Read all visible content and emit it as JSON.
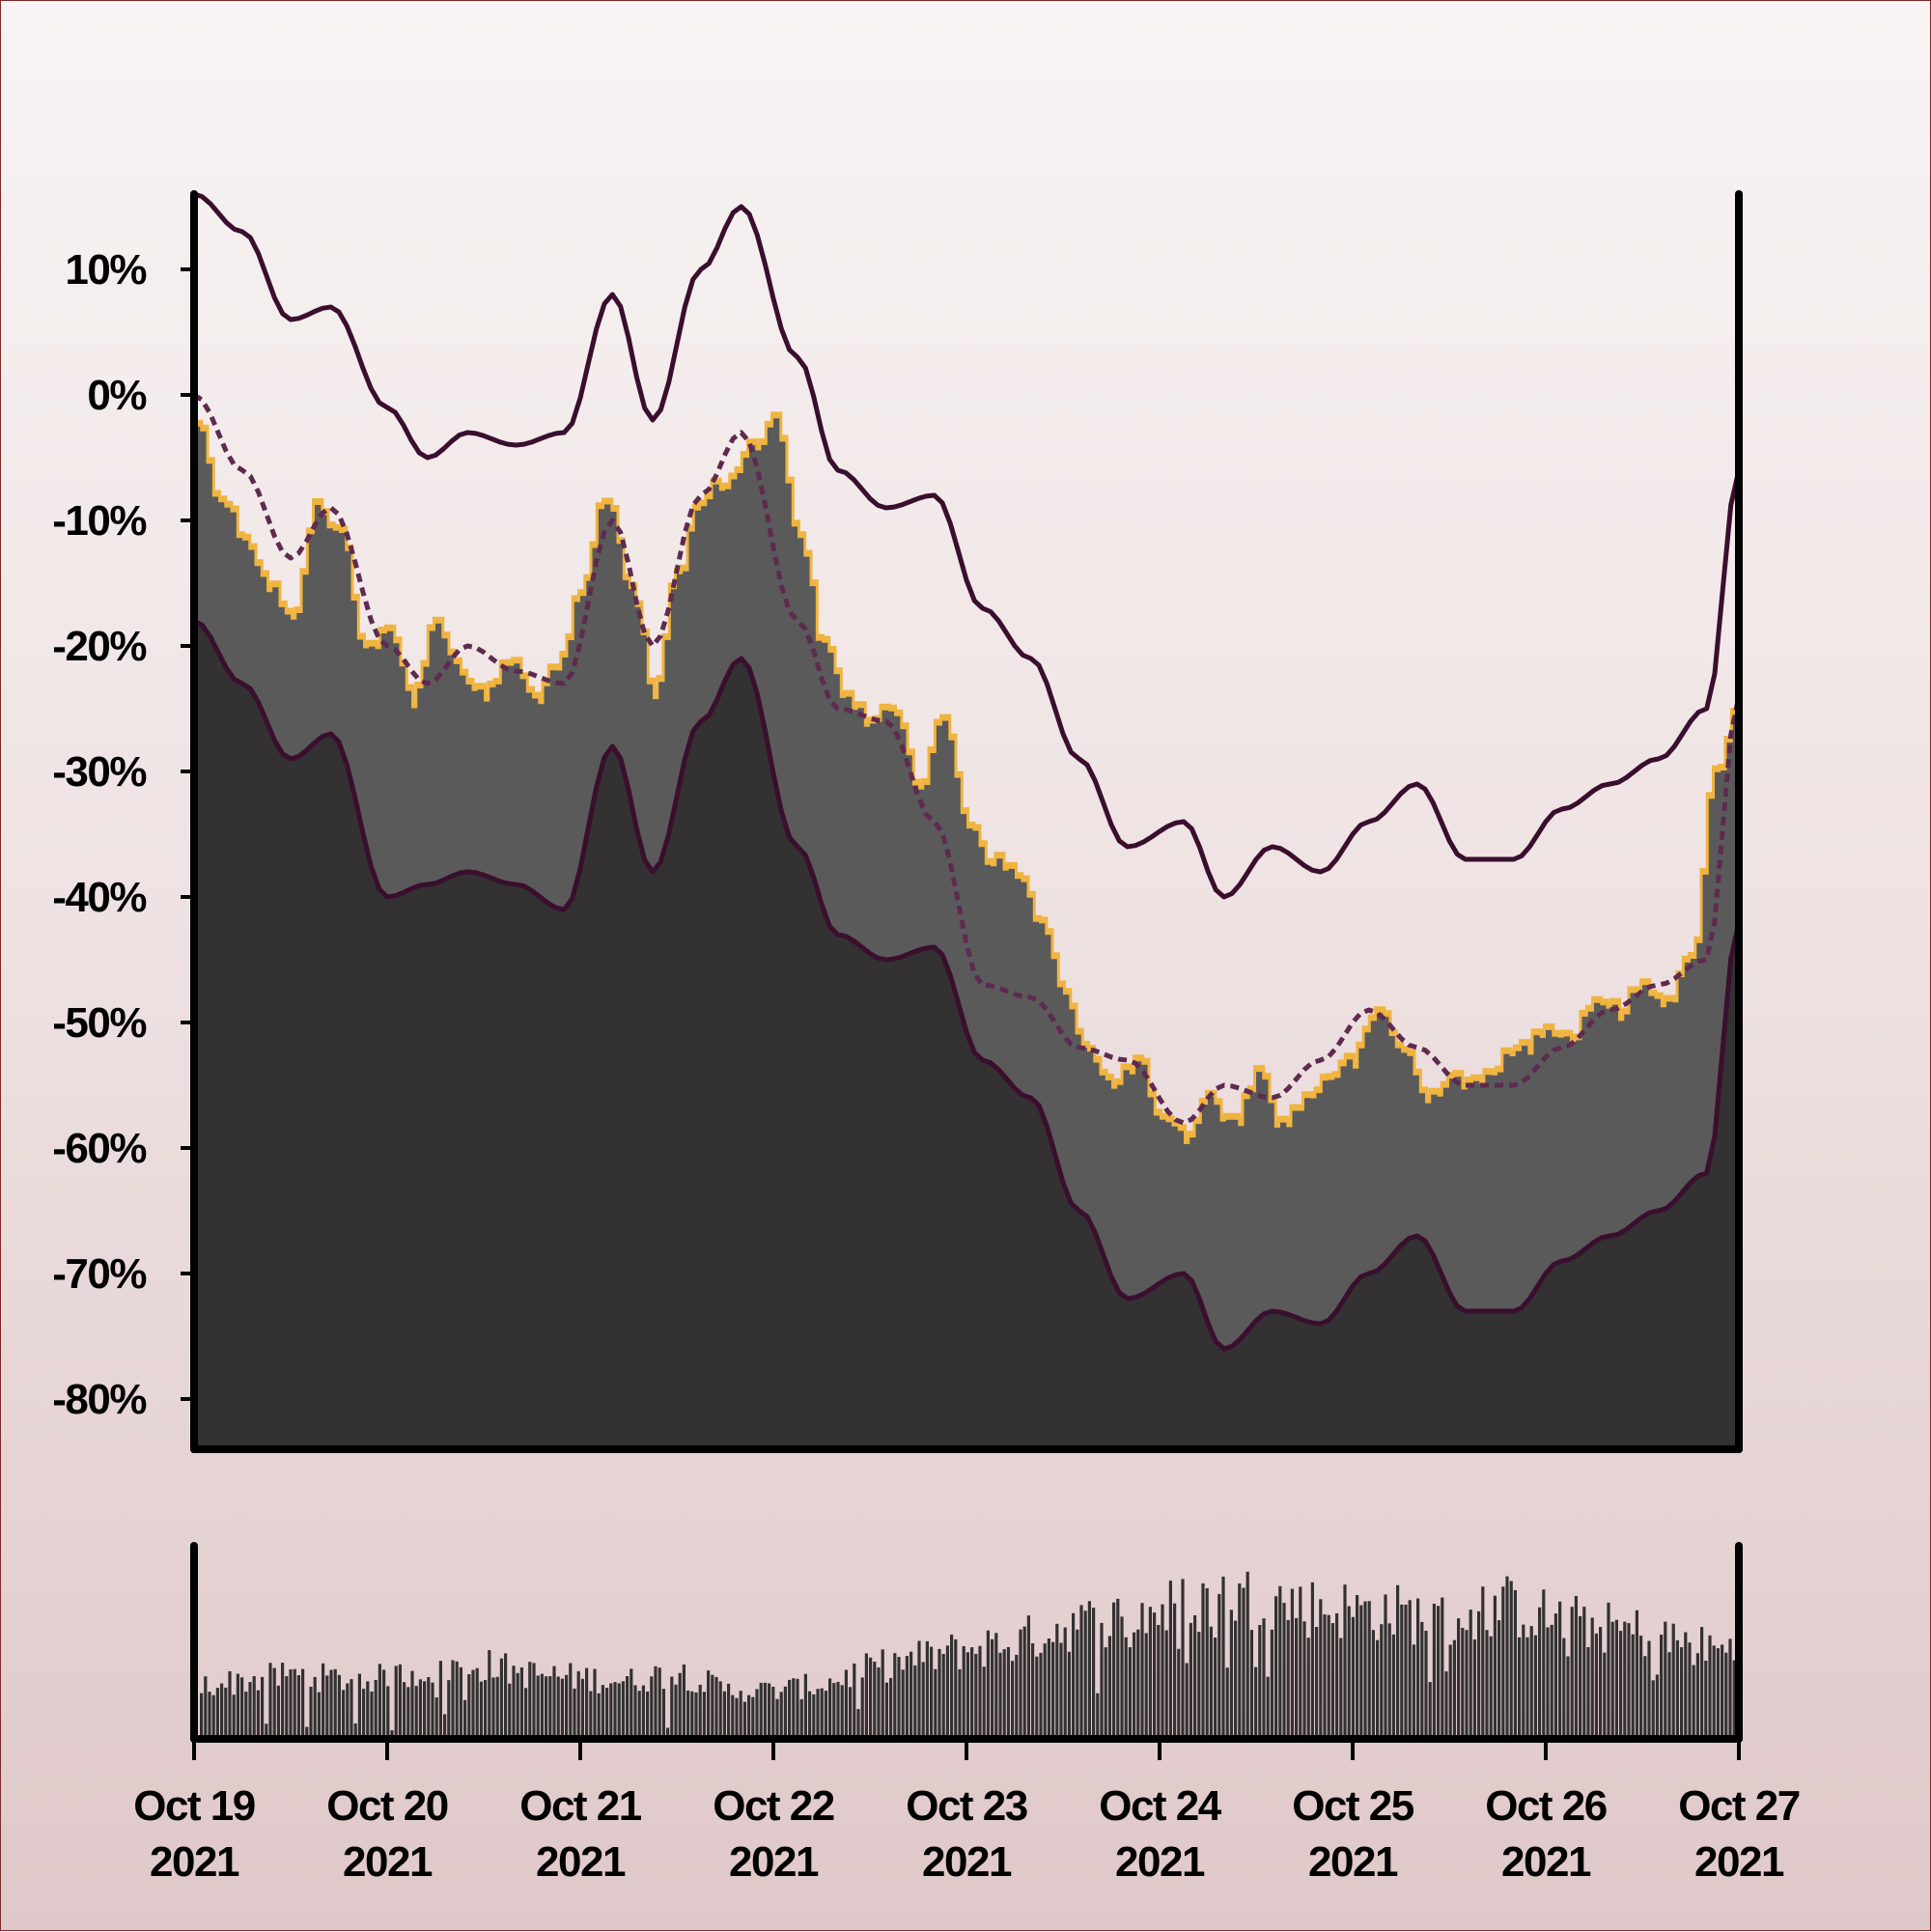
{
  "chart_data": [
    {
      "type": "area",
      "title": "",
      "xlabel": "",
      "ylabel": "",
      "y_tick_labels": [
        "10%",
        "0%",
        "-10%",
        "-20%",
        "-30%",
        "-40%",
        "-50%",
        "-60%",
        "-70%",
        "-80%"
      ],
      "y_tick_values": [
        10,
        0,
        -10,
        -20,
        -30,
        -40,
        -50,
        -60,
        -70,
        -80
      ],
      "ylim": [
        -84,
        16
      ],
      "xlim": [
        "2021-10-19",
        "2021-10-27"
      ],
      "grid": false,
      "legend": "none",
      "series": [
        {
          "role": "upper band",
          "style": "solid line",
          "color": "#3a0f2e",
          "x": [
            "2021-10-19T00:00",
            "2021-10-19T06:00",
            "2021-10-19T12:00",
            "2021-10-19T17:00",
            "2021-10-20T00:00",
            "2021-10-20T05:00",
            "2021-10-20T10:00",
            "2021-10-20T16:00",
            "2021-10-20T22:00",
            "2021-10-21T04:00",
            "2021-10-21T09:00",
            "2021-10-21T15:00",
            "2021-10-21T20:00",
            "2021-10-22T03:00",
            "2021-10-22T08:00",
            "2021-10-22T14:00",
            "2021-10-22T20:00",
            "2021-10-23T02:00",
            "2021-10-23T08:00",
            "2021-10-23T14:00",
            "2021-10-23T20:00",
            "2021-10-24T03:00",
            "2021-10-24T08:00",
            "2021-10-24T14:00",
            "2021-10-24T20:00",
            "2021-10-25T02:00",
            "2021-10-25T08:00",
            "2021-10-25T14:00",
            "2021-10-25T20:00",
            "2021-10-26T02:00",
            "2021-10-26T08:00",
            "2021-10-26T14:00",
            "2021-10-26T20:00",
            "2021-10-27T00:00"
          ],
          "values": [
            16,
            13,
            6,
            7,
            -1,
            -5,
            -3,
            -4,
            -3,
            8,
            -2,
            10,
            15,
            3,
            -6,
            -9,
            -8,
            -17,
            -21,
            -29,
            -36,
            -34,
            -40,
            -36,
            -38,
            -34,
            -31,
            -37,
            -37,
            -33,
            -31,
            -29,
            -25,
            -6
          ]
        },
        {
          "role": "trend (moving average)",
          "style": "dashed line",
          "color": "#5e2a50",
          "x": [
            "2021-10-19T00:00",
            "2021-10-19T06:00",
            "2021-10-19T12:00",
            "2021-10-19T17:00",
            "2021-10-20T00:00",
            "2021-10-20T05:00",
            "2021-10-20T10:00",
            "2021-10-20T16:00",
            "2021-10-20T22:00",
            "2021-10-21T04:00",
            "2021-10-21T09:00",
            "2021-10-21T15:00",
            "2021-10-21T20:00",
            "2021-10-22T03:00",
            "2021-10-22T08:00",
            "2021-10-22T14:00",
            "2021-10-22T20:00",
            "2021-10-23T02:00",
            "2021-10-23T08:00",
            "2021-10-23T14:00",
            "2021-10-23T20:00",
            "2021-10-24T03:00",
            "2021-10-24T08:00",
            "2021-10-24T14:00",
            "2021-10-24T20:00",
            "2021-10-25T02:00",
            "2021-10-25T08:00",
            "2021-10-25T14:00",
            "2021-10-25T20:00",
            "2021-10-26T02:00",
            "2021-10-26T08:00",
            "2021-10-26T14:00",
            "2021-10-26T20:00",
            "2021-10-27T00:00"
          ],
          "values": [
            0,
            -6,
            -13,
            -9,
            -20,
            -23,
            -20,
            -22,
            -23,
            -10,
            -20,
            -8,
            -3,
            -18,
            -25,
            -26,
            -34,
            -47,
            -48,
            -52,
            -53,
            -58,
            -55,
            -56,
            -53,
            -49,
            -52,
            -55,
            -55,
            -52,
            -49,
            -47,
            -45,
            -24
          ]
        },
        {
          "role": "actual value",
          "style": "filled area with stepped orange outline",
          "color": "#f0b440",
          "fill": "#5a5a5a",
          "x": [
            "2021-10-19T00:00",
            "2021-10-19T03:00",
            "2021-10-19T06:00",
            "2021-10-19T09:00",
            "2021-10-19T12:00",
            "2021-10-19T15:00",
            "2021-10-19T18:00",
            "2021-10-19T21:00",
            "2021-10-20T00:00",
            "2021-10-20T03:00",
            "2021-10-20T06:00",
            "2021-10-20T09:00",
            "2021-10-20T12:00",
            "2021-10-20T15:00",
            "2021-10-20T18:00",
            "2021-10-20T21:00",
            "2021-10-21T00:00",
            "2021-10-21T03:00",
            "2021-10-21T06:00",
            "2021-10-21T09:00",
            "2021-10-21T12:00",
            "2021-10-21T15:00",
            "2021-10-21T18:00",
            "2021-10-21T21:00",
            "2021-10-22T00:00",
            "2021-10-22T03:00",
            "2021-10-22T06:00",
            "2021-10-22T09:00",
            "2021-10-22T12:00",
            "2021-10-22T15:00",
            "2021-10-22T18:00",
            "2021-10-22T21:00",
            "2021-10-23T00:00",
            "2021-10-23T03:00",
            "2021-10-23T06:00",
            "2021-10-23T09:00",
            "2021-10-23T12:00",
            "2021-10-23T15:00",
            "2021-10-23T18:00",
            "2021-10-23T21:00",
            "2021-10-24T00:00",
            "2021-10-24T03:00",
            "2021-10-24T06:00",
            "2021-10-24T09:00",
            "2021-10-24T12:00",
            "2021-10-24T15:00",
            "2021-10-24T18:00",
            "2021-10-24T21:00",
            "2021-10-25T00:00",
            "2021-10-25T03:00",
            "2021-10-25T06:00",
            "2021-10-25T09:00",
            "2021-10-25T12:00",
            "2021-10-25T15:00",
            "2021-10-25T18:00",
            "2021-10-25T21:00",
            "2021-10-26T00:00",
            "2021-10-26T03:00",
            "2021-10-26T06:00",
            "2021-10-26T09:00",
            "2021-10-26T12:00",
            "2021-10-26T15:00",
            "2021-10-26T18:00",
            "2021-10-26T21:00",
            "2021-10-27T00:00"
          ],
          "values": [
            -2,
            -8,
            -11,
            -15,
            -18,
            -9,
            -11,
            -20,
            -19,
            -24,
            -18,
            -22,
            -24,
            -21,
            -24,
            -22,
            -16,
            -8,
            -15,
            -24,
            -14,
            -8,
            -7,
            -4,
            -2,
            -11,
            -20,
            -24,
            -26,
            -25,
            -31,
            -26,
            -34,
            -37,
            -38,
            -42,
            -48,
            -52,
            -55,
            -53,
            -58,
            -59,
            -56,
            -58,
            -54,
            -58,
            -56,
            -54,
            -53,
            -49,
            -52,
            -56,
            -54,
            -55,
            -53,
            -52,
            -50,
            -51,
            -48,
            -49,
            -47,
            -48,
            -45,
            -30,
            -24
          ]
        },
        {
          "role": "lower band",
          "style": "solid line with dark fill below",
          "color": "#3a0f2e",
          "fill": "#333132",
          "x": [
            "2021-10-19T00:00",
            "2021-10-19T06:00",
            "2021-10-19T12:00",
            "2021-10-19T17:00",
            "2021-10-20T00:00",
            "2021-10-20T05:00",
            "2021-10-20T10:00",
            "2021-10-20T16:00",
            "2021-10-20T22:00",
            "2021-10-21T04:00",
            "2021-10-21T09:00",
            "2021-10-21T15:00",
            "2021-10-21T20:00",
            "2021-10-22T03:00",
            "2021-10-22T08:00",
            "2021-10-22T14:00",
            "2021-10-22T20:00",
            "2021-10-23T02:00",
            "2021-10-23T08:00",
            "2021-10-23T14:00",
            "2021-10-23T20:00",
            "2021-10-24T03:00",
            "2021-10-24T08:00",
            "2021-10-24T14:00",
            "2021-10-24T20:00",
            "2021-10-25T02:00",
            "2021-10-25T08:00",
            "2021-10-25T14:00",
            "2021-10-25T20:00",
            "2021-10-26T02:00",
            "2021-10-26T08:00",
            "2021-10-26T14:00",
            "2021-10-26T20:00",
            "2021-10-27T00:00"
          ],
          "values": [
            -18,
            -23,
            -29,
            -27,
            -40,
            -39,
            -38,
            -39,
            -41,
            -28,
            -38,
            -26,
            -21,
            -36,
            -43,
            -45,
            -44,
            -53,
            -56,
            -65,
            -72,
            -70,
            -76,
            -73,
            -74,
            -70,
            -67,
            -73,
            -73,
            -69,
            -67,
            -65,
            -62,
            -42
          ]
        }
      ]
    },
    {
      "type": "bar",
      "role": "volume panel",
      "color": "#333132",
      "y_tick_labels": [],
      "x_tick_labels": [
        [
          "Oct 19",
          "2021"
        ],
        [
          "Oct 20",
          "2021"
        ],
        [
          "Oct 21",
          "2021"
        ],
        [
          "Oct 22",
          "2021"
        ],
        [
          "Oct 23",
          "2021"
        ],
        [
          "Oct 24",
          "2021"
        ],
        [
          "Oct 25",
          "2021"
        ],
        [
          "Oct 26",
          "2021"
        ],
        [
          "Oct 27",
          "2021"
        ]
      ],
      "x": [
        "2021-10-19T00:00",
        "2021-10-19T06:00",
        "2021-10-19T12:00",
        "2021-10-19T18:00",
        "2021-10-20T00:00",
        "2021-10-20T06:00",
        "2021-10-20T12:00",
        "2021-10-20T18:00",
        "2021-10-21T00:00",
        "2021-10-21T06:00",
        "2021-10-21T12:00",
        "2021-10-21T18:00",
        "2021-10-22T00:00",
        "2021-10-22T06:00",
        "2021-10-22T12:00",
        "2021-10-22T18:00",
        "2021-10-23T00:00",
        "2021-10-23T06:00",
        "2021-10-23T12:00",
        "2021-10-23T18:00",
        "2021-10-24T00:00",
        "2021-10-24T06:00",
        "2021-10-24T12:00",
        "2021-10-24T18:00",
        "2021-10-25T00:00",
        "2021-10-25T06:00",
        "2021-10-25T12:00",
        "2021-10-25T18:00",
        "2021-10-26T00:00",
        "2021-10-26T06:00",
        "2021-10-26T12:00",
        "2021-10-26T18:00",
        "2021-10-27T00:00"
      ],
      "values": [
        0.33,
        0.36,
        0.4,
        0.37,
        0.38,
        0.44,
        0.46,
        0.4,
        0.38,
        0.36,
        0.42,
        0.3,
        0.3,
        0.34,
        0.44,
        0.5,
        0.56,
        0.6,
        0.7,
        0.74,
        0.8,
        0.86,
        0.88,
        0.82,
        0.8,
        0.78,
        0.72,
        0.84,
        0.76,
        0.7,
        0.66,
        0.58,
        0.54
      ]
    }
  ]
}
